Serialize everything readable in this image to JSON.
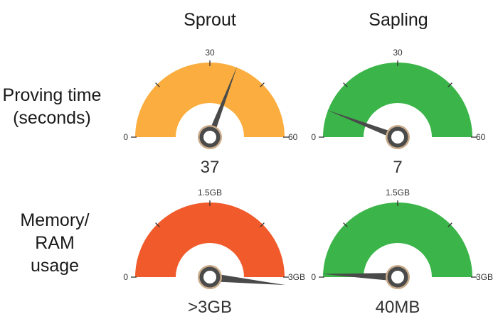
{
  "columns": [
    "Sprout",
    "Sapling"
  ],
  "rows": [
    {
      "label_lines": [
        "Proving time",
        "(seconds)"
      ]
    },
    {
      "label_lines": [
        "Memory/",
        "RAM",
        "usage"
      ]
    }
  ],
  "chart_data": [
    {
      "type": "gauge",
      "name": "Sprout proving time",
      "column": "Sprout",
      "row": "Proving time (seconds)",
      "min_label": "0",
      "mid_label": "30",
      "max_label": "60",
      "range": [
        0,
        60
      ],
      "value": 37,
      "value_label": "37",
      "color": "#FBAE3F"
    },
    {
      "type": "gauge",
      "name": "Sapling proving time",
      "column": "Sapling",
      "row": "Proving time (seconds)",
      "min_label": "0",
      "mid_label": "30",
      "max_label": "60",
      "range": [
        0,
        60
      ],
      "value": 7,
      "value_label": "7",
      "color": "#3BB54A"
    },
    {
      "type": "gauge",
      "name": "Sprout memory usage",
      "column": "Sprout",
      "row": "Memory/RAM usage",
      "min_label": "0",
      "mid_label": "1.5GB",
      "max_label": "3GB",
      "range": [
        0,
        3
      ],
      "value": 3.1,
      "value_label": ">3GB",
      "color": "#F15A2B"
    },
    {
      "type": "gauge",
      "name": "Sapling memory usage",
      "column": "Sapling",
      "row": "Memory/RAM usage",
      "min_label": "0",
      "mid_label": "1.5GB",
      "max_label": "3GB",
      "range": [
        0,
        3
      ],
      "value": 0.04,
      "value_label": "40MB",
      "color": "#3BB54A"
    }
  ]
}
